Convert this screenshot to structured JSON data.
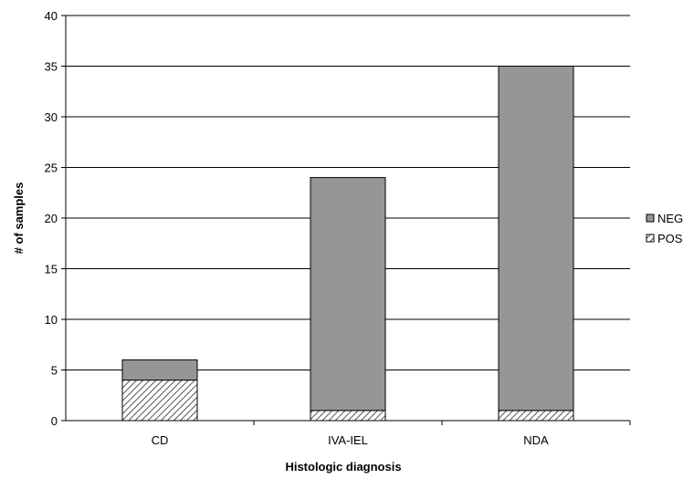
{
  "chart_data": {
    "type": "bar",
    "stacked": true,
    "categories": [
      "CD",
      "IVA-IEL",
      "NDA"
    ],
    "series": [
      {
        "name": "POS",
        "values": [
          4,
          1,
          1
        ],
        "fill": "hatched"
      },
      {
        "name": "NEG",
        "values": [
          2,
          23,
          34
        ],
        "color": "#969696"
      }
    ],
    "xlabel": "Histologic diagnosis",
    "ylabel": "# of samples",
    "ylim": [
      0,
      40
    ],
    "yticks": [
      0,
      5,
      10,
      15,
      20,
      25,
      30,
      35,
      40
    ],
    "grid": true,
    "legend": {
      "placement": "right",
      "entries": [
        "NEG",
        "POS"
      ]
    }
  }
}
